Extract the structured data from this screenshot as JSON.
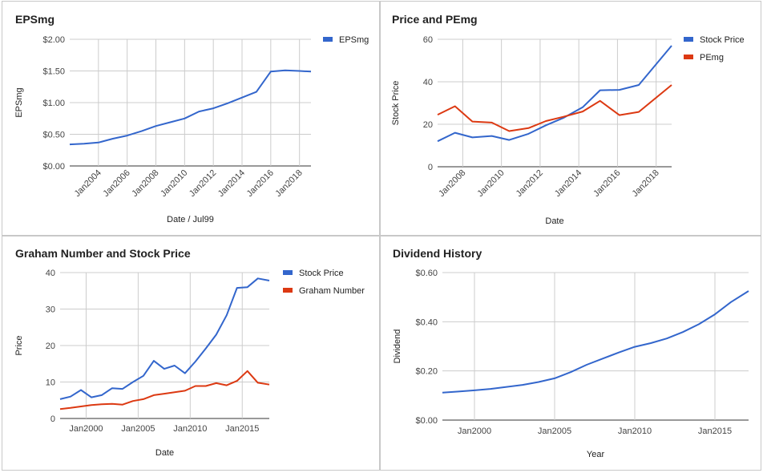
{
  "charts": [
    {
      "id": "eps",
      "title": "EPSmg",
      "type": "line",
      "xlabel": "Date / Jul99",
      "ylabel": "EPSmg",
      "ylim": [
        0,
        2
      ],
      "yticks": [
        {
          "v": 0,
          "label": "$0.00"
        },
        {
          "v": 0.5,
          "label": "$0.50"
        },
        {
          "v": 1,
          "label": "$1.00"
        },
        {
          "v": 1.5,
          "label": "$1.50"
        },
        {
          "v": 2,
          "label": "$2.00"
        }
      ],
      "xlim": [
        2002.0,
        2018.8
      ],
      "xticks": [
        {
          "v": 2004,
          "label": "Jan2004"
        },
        {
          "v": 2006,
          "label": "Jan2006"
        },
        {
          "v": 2008,
          "label": "Jan2008"
        },
        {
          "v": 2010,
          "label": "Jan2010"
        },
        {
          "v": 2012,
          "label": "Jan2012"
        },
        {
          "v": 2014,
          "label": "Jan2014"
        },
        {
          "v": 2016,
          "label": "Jan2016"
        },
        {
          "v": 2018,
          "label": "Jan2018"
        }
      ],
      "xtick_rotate": true,
      "legend": "right",
      "series": [
        {
          "name": "EPSmg",
          "color": "#3366cc",
          "x": [
            2002.0,
            2003.0,
            2004.0,
            2005.0,
            2006.0,
            2007.0,
            2008.0,
            2009.0,
            2010.0,
            2011.0,
            2012.0,
            2013.0,
            2014.0,
            2015.0,
            2016.0,
            2017.0,
            2018.0,
            2018.8
          ],
          "y": [
            0.34,
            0.35,
            0.37,
            0.43,
            0.48,
            0.55,
            0.63,
            0.69,
            0.75,
            0.86,
            0.91,
            0.99,
            1.08,
            1.17,
            1.49,
            1.51,
            1.5,
            1.49
          ]
        }
      ]
    },
    {
      "id": "price_pe",
      "title": "Price and PEmg",
      "type": "line",
      "xlabel": "Date",
      "ylabel": "Stock Price",
      "ylim": [
        0,
        60
      ],
      "yticks": [
        {
          "v": 0,
          "label": "0"
        },
        {
          "v": 20,
          "label": "20"
        },
        {
          "v": 40,
          "label": "40"
        },
        {
          "v": 60,
          "label": "60"
        }
      ],
      "xlim": [
        2006.7,
        2018.8
      ],
      "xticks": [
        {
          "v": 2008,
          "label": "Jan2008"
        },
        {
          "v": 2010,
          "label": "Jan2010"
        },
        {
          "v": 2012,
          "label": "Jan2012"
        },
        {
          "v": 2014,
          "label": "Jan2014"
        },
        {
          "v": 2016,
          "label": "Jan2016"
        },
        {
          "v": 2018,
          "label": "Jan2018"
        }
      ],
      "xtick_rotate": true,
      "legend": "right",
      "series": [
        {
          "name": "Stock Price",
          "color": "#3366cc",
          "x": [
            2006.7,
            2007.6,
            2008.5,
            2009.5,
            2010.4,
            2011.4,
            2012.3,
            2013.2,
            2014.2,
            2015.1,
            2016.1,
            2017.1,
            2018.8
          ],
          "y": [
            12,
            16,
            13.8,
            14.5,
            12.6,
            15.5,
            19.5,
            23,
            28,
            36,
            36.2,
            38.5,
            57
          ]
        },
        {
          "name": "PEmg",
          "color": "#dc3912",
          "x": [
            2006.7,
            2007.6,
            2008.5,
            2009.5,
            2010.4,
            2011.4,
            2012.3,
            2013.2,
            2014.2,
            2015.1,
            2016.1,
            2017.1,
            2018.8
          ],
          "y": [
            24.5,
            28.5,
            21.3,
            20.8,
            16.8,
            18.2,
            21.5,
            23.5,
            26,
            31,
            24.3,
            25.8,
            38.5
          ]
        }
      ]
    },
    {
      "id": "graham",
      "title": "Graham Number and Stock Price",
      "type": "line",
      "xlabel": "Date",
      "ylabel": "Price",
      "ylim": [
        0,
        40
      ],
      "yticks": [
        {
          "v": 0,
          "label": "0"
        },
        {
          "v": 10,
          "label": "10"
        },
        {
          "v": 20,
          "label": "20"
        },
        {
          "v": 30,
          "label": "30"
        },
        {
          "v": 40,
          "label": "40"
        }
      ],
      "xlim": [
        1997.5,
        2017.6
      ],
      "xticks": [
        {
          "v": 2000,
          "label": "Jan2000"
        },
        {
          "v": 2005,
          "label": "Jan2005"
        },
        {
          "v": 2010,
          "label": "Jan2010"
        },
        {
          "v": 2015,
          "label": "Jan2015"
        }
      ],
      "xtick_rotate": false,
      "legend": "right",
      "series": [
        {
          "name": "Stock Price",
          "color": "#3366cc",
          "x": [
            1997.5,
            1998.5,
            1999.5,
            2000.5,
            2001.5,
            2002.5,
            2003.5,
            2004.5,
            2005.5,
            2006.5,
            2007.5,
            2008.5,
            2009.5,
            2010.5,
            2011.5,
            2012.5,
            2013.5,
            2014.5,
            2015.5,
            2016.5,
            2017.6
          ],
          "y": [
            5.3,
            6,
            7.8,
            5.8,
            6.4,
            8.3,
            8.1,
            10,
            11.7,
            15.8,
            13.6,
            14.5,
            12.4,
            15.6,
            19.2,
            23,
            28.3,
            35.8,
            36,
            38.4,
            37.8
          ]
        },
        {
          "name": "Graham Number",
          "color": "#dc3912",
          "x": [
            1997.5,
            1998.5,
            1999.5,
            2000.5,
            2001.5,
            2002.5,
            2003.5,
            2004.5,
            2005.5,
            2006.5,
            2007.5,
            2008.5,
            2009.5,
            2010.5,
            2011.5,
            2012.5,
            2013.5,
            2014.5,
            2015.5,
            2016.5,
            2017.6
          ],
          "y": [
            2.6,
            2.9,
            3.3,
            3.7,
            3.9,
            4.0,
            3.8,
            4.8,
            5.3,
            6.4,
            6.8,
            7.2,
            7.6,
            8.9,
            8.9,
            9.7,
            9.1,
            10.3,
            13.0,
            9.8,
            9.3
          ]
        }
      ]
    },
    {
      "id": "dividend",
      "title": "Dividend History",
      "type": "line",
      "xlabel": "Year",
      "ylabel": "Dividend",
      "ylim": [
        0,
        0.6
      ],
      "yticks": [
        {
          "v": 0,
          "label": "$0.00"
        },
        {
          "v": 0.2,
          "label": "$0.20"
        },
        {
          "v": 0.4,
          "label": "$0.40"
        },
        {
          "v": 0.6,
          "label": "$0.60"
        }
      ],
      "xlim": [
        1998.0,
        2017.1
      ],
      "xticks": [
        {
          "v": 2000,
          "label": "Jan2000"
        },
        {
          "v": 2005,
          "label": "Jan2005"
        },
        {
          "v": 2010,
          "label": "Jan2010"
        },
        {
          "v": 2015,
          "label": "Jan2015"
        }
      ],
      "xtick_rotate": false,
      "legend": "none",
      "series": [
        {
          "name": "Dividend",
          "color": "#3366cc",
          "x": [
            1998.0,
            1999.0,
            2000.0,
            2001.0,
            2002.0,
            2003.0,
            2004.0,
            2005.0,
            2006.0,
            2007.0,
            2008.0,
            2009.0,
            2010.0,
            2011.0,
            2012.0,
            2013.0,
            2014.0,
            2015.0,
            2016.0,
            2017.1
          ],
          "y": [
            0.112,
            0.116,
            0.121,
            0.127,
            0.135,
            0.143,
            0.155,
            0.17,
            0.195,
            0.225,
            0.25,
            0.275,
            0.298,
            0.313,
            0.332,
            0.358,
            0.39,
            0.43,
            0.48,
            0.525
          ]
        }
      ]
    }
  ]
}
